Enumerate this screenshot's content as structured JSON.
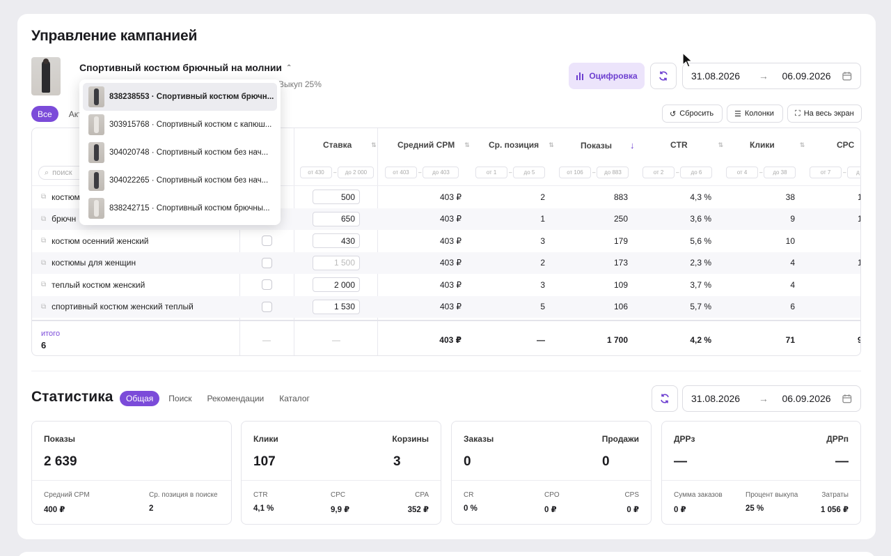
{
  "page": {
    "title": "Управление кампанией"
  },
  "product": {
    "title": "Спортивный костюм брючный на молнии",
    "sub_info": "Выкуп 25%"
  },
  "actions": {
    "digitize_label": "Оцифровка"
  },
  "campaign_dates": {
    "from": "31.08.2026",
    "to": "06.09.2026"
  },
  "filter_tabs": [
    "Все",
    "Акти"
  ],
  "toolbar": {
    "reset_label": "Сбросить",
    "columns_label": "Колонки",
    "fullscreen_label": "На весь экран"
  },
  "table": {
    "search_placeholder": "поиск",
    "columns": [
      {
        "label": "Ставка",
        "from": "от 430",
        "to": "до 2 000"
      },
      {
        "label": "Средний CPM",
        "from": "от 403",
        "to": "до 403"
      },
      {
        "label": "Ср. позиция",
        "from": "от 1",
        "to": "до 5"
      },
      {
        "label": "Показы",
        "from": "от 106",
        "to": "до 883"
      },
      {
        "label": "CTR",
        "from": "от 2",
        "to": "до 6"
      },
      {
        "label": "Клики",
        "from": "от 4",
        "to": "до 38"
      },
      {
        "label": "CPC",
        "from": "от 7",
        "to": "д"
      }
    ],
    "rows": [
      {
        "keyword": "костюм",
        "bid": "500",
        "cpm": "403 ₽",
        "pos": "2",
        "shows": "883",
        "ctr": "4,3 %",
        "clicks": "38",
        "cpc": "1"
      },
      {
        "keyword": "брючн",
        "bid": "650",
        "cpm": "403 ₽",
        "pos": "1",
        "shows": "250",
        "ctr": "3,6 %",
        "clicks": "9",
        "cpc": "1"
      },
      {
        "keyword": "костюм осенний женский",
        "bid": "430",
        "cpm": "403 ₽",
        "pos": "3",
        "shows": "179",
        "ctr": "5,6 %",
        "clicks": "10",
        "cpc": ""
      },
      {
        "keyword": "костюмы для женщин",
        "bid": "1 500",
        "cpm": "403 ₽",
        "pos": "2",
        "shows": "173",
        "ctr": "2,3 %",
        "clicks": "4",
        "cpc": "1"
      },
      {
        "keyword": "теплый костюм женский",
        "bid": "2 000",
        "cpm": "403 ₽",
        "pos": "3",
        "shows": "109",
        "ctr": "3,7 %",
        "clicks": "4",
        "cpc": ""
      },
      {
        "keyword": "спортивный костюм женский теплый",
        "bid": "1 530",
        "cpm": "403 ₽",
        "pos": "5",
        "shows": "106",
        "ctr": "5,7 %",
        "clicks": "6",
        "cpc": ""
      }
    ],
    "total": {
      "label": "итого",
      "count": "6",
      "check": "—",
      "bid": "—",
      "cpm": "403 ₽",
      "pos": "—",
      "shows": "1 700",
      "ctr": "4,2 %",
      "clicks": "71",
      "cpc": "9"
    }
  },
  "dropdown": {
    "items": [
      "838238553 · Спортивный костюм брючн...",
      "303915768 · Спортивный костюм с капюш...",
      "304020748 · Спортивный костюм без нач...",
      "304022265 · Спортивный костюм без нач...",
      "838242715 · Спортивный костюм брючны..."
    ]
  },
  "stats": {
    "title": "Статистика",
    "tabs": [
      "Общая",
      "Поиск",
      "Рекомендации",
      "Каталог"
    ],
    "dates": {
      "from": "31.08.2026",
      "to": "06.09.2026"
    },
    "boxes": [
      {
        "l1": "Показы",
        "v1": "2 639",
        "l2": "",
        "v2": "",
        "subs": [
          {
            "label": "Средний CPM",
            "value": "400 ₽"
          },
          {
            "label": "Ср. позиция в поиске",
            "value": "2"
          }
        ]
      },
      {
        "l1": "Клики",
        "v1": "107",
        "l2": "Корзины",
        "v2": "3",
        "subs": [
          {
            "label": "CTR",
            "value": "4,1 %"
          },
          {
            "label": "CPC",
            "value": "9,9 ₽"
          },
          {
            "label": "CPA",
            "value": "352 ₽"
          }
        ]
      },
      {
        "l1": "Заказы",
        "v1": "0",
        "l2": "Продажи",
        "v2": "0",
        "subs": [
          {
            "label": "CR",
            "value": "0 %"
          },
          {
            "label": "CPO",
            "value": "0 ₽"
          },
          {
            "label": "CPS",
            "value": "0 ₽"
          }
        ]
      },
      {
        "l1": "ДРРз",
        "v1": "—",
        "l2": "ДРРп",
        "v2": "—",
        "subs": [
          {
            "label": "Сумма заказов",
            "value": "0 ₽"
          },
          {
            "label": "Процент выкупа",
            "value": "25 %"
          },
          {
            "label": "Затраты",
            "value": "1 056 ₽"
          }
        ]
      }
    ]
  }
}
